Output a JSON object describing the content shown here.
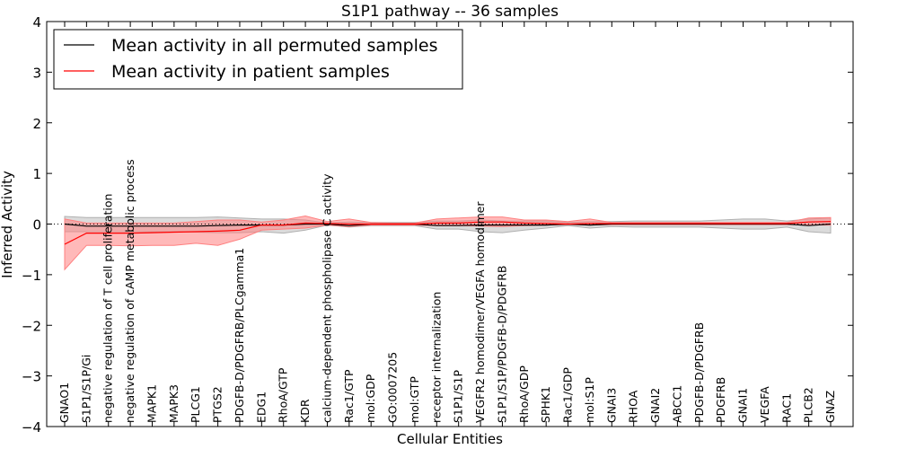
{
  "chart_data": {
    "type": "line",
    "title": "S1P1 pathway -- 36 samples",
    "xlabel": "Cellular Entities",
    "ylabel": "Inferred Activity",
    "ylim": [
      -4,
      4
    ],
    "yticks": [
      -4,
      -3,
      -2,
      -1,
      0,
      1,
      2,
      3,
      4
    ],
    "ytick_labels": [
      "−4",
      "−3",
      "−2",
      "−1",
      "0",
      "1",
      "2",
      "3",
      "4"
    ],
    "categories": [
      "GNAO1",
      "S1P1/S1P/Gi",
      "negative regulation of T cell proliferation",
      "negative regulation of cAMP metabolic process",
      "MAPK1",
      "MAPK3",
      "PLCG1",
      "PTGS2",
      "PDGFB-D/PDGFRB/PLCgamma1",
      "EDG1",
      "RhoA/GTP",
      "KDR",
      "calcium-dependent phospholipase C activity",
      "Rac1/GTP",
      "mol:GDP",
      "GO:0007205",
      "mol:GTP",
      "receptor internalization",
      "S1P1/S1P",
      "VEGFR2 homodimer/VEGFA homodimer",
      "S1P1/S1P/PDGFB-D/PDGFRB",
      "RhoA/GDP",
      "SPHK1",
      "Rac1/GDP",
      "mol:S1P",
      "GNAI3",
      "RHOA",
      "GNAI2",
      "ABCC1",
      "PDGFB-D/PDGFRB",
      "PDGFRB",
      "GNAI1",
      "VEGFA",
      "RAC1",
      "PLCB2",
      "GNAZ"
    ],
    "legend": {
      "position": "top-left"
    },
    "series": [
      {
        "name": "Mean activity in all permuted samples",
        "color": "#000000",
        "band_color": "#b0b0b0",
        "values": [
          0.0,
          -0.04,
          -0.04,
          -0.04,
          -0.04,
          -0.04,
          -0.04,
          -0.03,
          -0.02,
          -0.02,
          -0.02,
          0.0,
          0.0,
          -0.03,
          0.0,
          0.0,
          0.0,
          -0.03,
          -0.03,
          -0.02,
          -0.02,
          -0.02,
          -0.02,
          0.0,
          -0.02,
          0.0,
          0.0,
          0.0,
          0.0,
          0.0,
          0.0,
          0.0,
          0.0,
          0.0,
          -0.03,
          0.0
        ],
        "lower": [
          -0.15,
          -0.15,
          -0.15,
          -0.15,
          -0.15,
          -0.15,
          -0.16,
          -0.17,
          -0.17,
          -0.15,
          -0.18,
          -0.12,
          -0.02,
          -0.06,
          -0.03,
          -0.03,
          -0.03,
          -0.1,
          -0.1,
          -0.15,
          -0.17,
          -0.12,
          -0.08,
          -0.03,
          -0.08,
          -0.05,
          -0.06,
          -0.06,
          -0.06,
          -0.06,
          -0.08,
          -0.1,
          -0.1,
          -0.06,
          -0.15,
          -0.18
        ],
        "upper": [
          0.15,
          0.13,
          0.13,
          0.13,
          0.13,
          0.13,
          0.13,
          0.14,
          0.12,
          0.1,
          0.1,
          0.08,
          0.02,
          0.04,
          0.03,
          0.03,
          0.03,
          0.06,
          0.06,
          0.08,
          0.06,
          0.06,
          0.06,
          0.03,
          0.05,
          0.05,
          0.06,
          0.06,
          0.06,
          0.06,
          0.08,
          0.1,
          0.1,
          0.06,
          0.1,
          0.12
        ]
      },
      {
        "name": "Mean activity in patient samples",
        "color": "#ff0000",
        "band_color": "#ff8080",
        "values": [
          -0.4,
          -0.18,
          -0.18,
          -0.18,
          -0.17,
          -0.16,
          -0.15,
          -0.14,
          -0.12,
          -0.02,
          -0.02,
          0.02,
          0.01,
          0.0,
          0.0,
          0.0,
          0.0,
          0.02,
          0.02,
          0.04,
          0.04,
          0.02,
          0.01,
          0.0,
          0.01,
          0.01,
          0.01,
          0.01,
          0.01,
          0.01,
          0.01,
          0.01,
          0.01,
          0.01,
          0.04,
          0.05
        ],
        "lower": [
          -0.9,
          -0.42,
          -0.42,
          -0.43,
          -0.42,
          -0.42,
          -0.38,
          -0.42,
          -0.3,
          -0.12,
          -0.1,
          -0.08,
          -0.02,
          -0.05,
          -0.02,
          -0.02,
          -0.02,
          -0.03,
          -0.03,
          -0.04,
          -0.05,
          -0.03,
          -0.02,
          -0.01,
          -0.02,
          -0.01,
          -0.01,
          -0.01,
          -0.01,
          -0.01,
          -0.01,
          -0.01,
          -0.01,
          -0.01,
          -0.02,
          -0.02
        ],
        "upper": [
          0.1,
          0.02,
          0.02,
          0.02,
          0.02,
          0.02,
          0.05,
          0.08,
          0.08,
          0.04,
          0.08,
          0.16,
          0.05,
          0.1,
          0.03,
          0.02,
          0.02,
          0.1,
          0.12,
          0.14,
          0.14,
          0.08,
          0.08,
          0.05,
          0.1,
          0.03,
          0.03,
          0.03,
          0.03,
          0.03,
          0.03,
          0.03,
          0.03,
          0.03,
          0.12,
          0.13
        ]
      }
    ],
    "baseline": {
      "y": 0,
      "style": "dotted"
    }
  }
}
